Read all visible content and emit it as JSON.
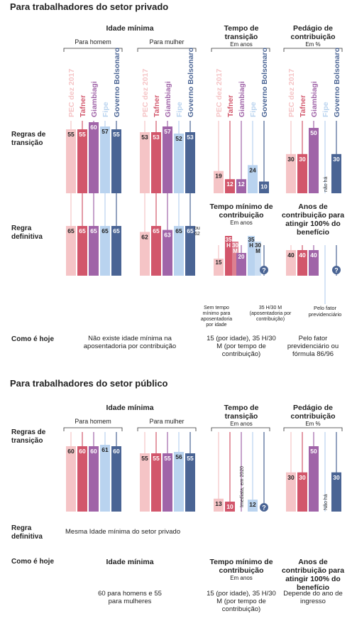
{
  "unknown": "?",
  "series": [
    {
      "name": "PEC dez 2017",
      "color": "#f5c4c6"
    },
    {
      "name": "Tafner",
      "color": "#d2566b"
    },
    {
      "name": "Giambiagi",
      "color": "#a064a8"
    },
    {
      "name": "Fipe",
      "color": "#b9d3ef"
    },
    {
      "name": "Governo Bolsonaro",
      "color": "#4a6494"
    }
  ],
  "private": {
    "title": "Para trabalhadores do setor privado",
    "headers": {
      "age": "Idade mínima",
      "men": "Para homem",
      "women": "Para mulher",
      "time": "Tempo de transição",
      "time_unit": "Em anos",
      "toll": "Pedágio de contribuição",
      "toll_unit": "Em %"
    },
    "row_labels": {
      "transition": "Regras de transição",
      "definitive": "Regra definitiva",
      "today": "Como é hoje"
    },
    "transition": {
      "men": [
        55,
        55,
        60,
        57,
        55
      ],
      "women": [
        53,
        53,
        57,
        52,
        53
      ],
      "time": [
        19,
        12,
        12,
        24,
        10
      ],
      "toll": [
        30,
        30,
        50,
        null,
        30
      ],
      "toll_note": "não há"
    },
    "definitive": {
      "men": [
        65,
        65,
        65,
        65,
        65
      ],
      "women": [
        62,
        65,
        63,
        65,
        65
      ],
      "women_note": "ou 62",
      "min_title": "Tempo mínimo de contribuição",
      "min_unit": "Em anos",
      "min_men": [
        15,
        35,
        20,
        35,
        null
      ],
      "min_men_labels": [
        "15",
        "35 H",
        "20",
        "35 H",
        null
      ],
      "min_women": [
        null,
        30,
        null,
        30,
        null
      ],
      "min_women_labels": [
        null,
        "30 M",
        null,
        "30 M",
        null
      ],
      "min_notes": [
        "Sem tempo mínimo para aposentadoria por idade",
        "35 H/30 M (aposentadoria por contribuição)"
      ],
      "full_title": "Anos de contribuição para atingir 100% do benefício",
      "full": [
        40,
        40,
        40,
        null,
        null
      ],
      "full_note": "Pelo fator previdenciário"
    },
    "today": [
      "Não existe idade mínima na aposentadoria por contribuição",
      "15 (por idade), 35 H/30 M (por tempo de contribuição)",
      "Pelo fator previdenciário ou fórmula 86/96"
    ]
  },
  "public": {
    "title": "Para trabalhadores do setor público",
    "headers": {
      "age": "Idade mínima",
      "men": "Para homem",
      "women": "Para mulher",
      "time": "Tempo de transição",
      "time_unit": "Em anos",
      "toll": "Pedágio de contribuição",
      "toll_unit": "Em %"
    },
    "row_labels": {
      "transition": "Regras de transição",
      "definitive": "Regra definitiva",
      "today": "Como é hoje"
    },
    "transition": {
      "men": [
        60,
        60,
        60,
        61,
        60
      ],
      "women": [
        55,
        55,
        55,
        56,
        55
      ],
      "time": [
        13,
        10,
        null,
        12,
        null
      ],
      "time_note": "Imediata, em 2020",
      "toll": [
        30,
        30,
        50,
        null,
        30
      ],
      "toll_note": "Não há"
    },
    "definitive_text": "Mesma Idade mínima do setor privado",
    "today_headers": {
      "age": "Idade mínima",
      "min": "Tempo mínimo de contribuição",
      "min_unit": "Em anos",
      "full": "Anos de contribuição para atingir 100% do benefício"
    },
    "today": [
      "60 para homens e 55 para mulheres",
      "15 (por idade), 35 H/30 M (por tempo de contribuição)",
      "Depende do ano de ingresso"
    ]
  }
}
